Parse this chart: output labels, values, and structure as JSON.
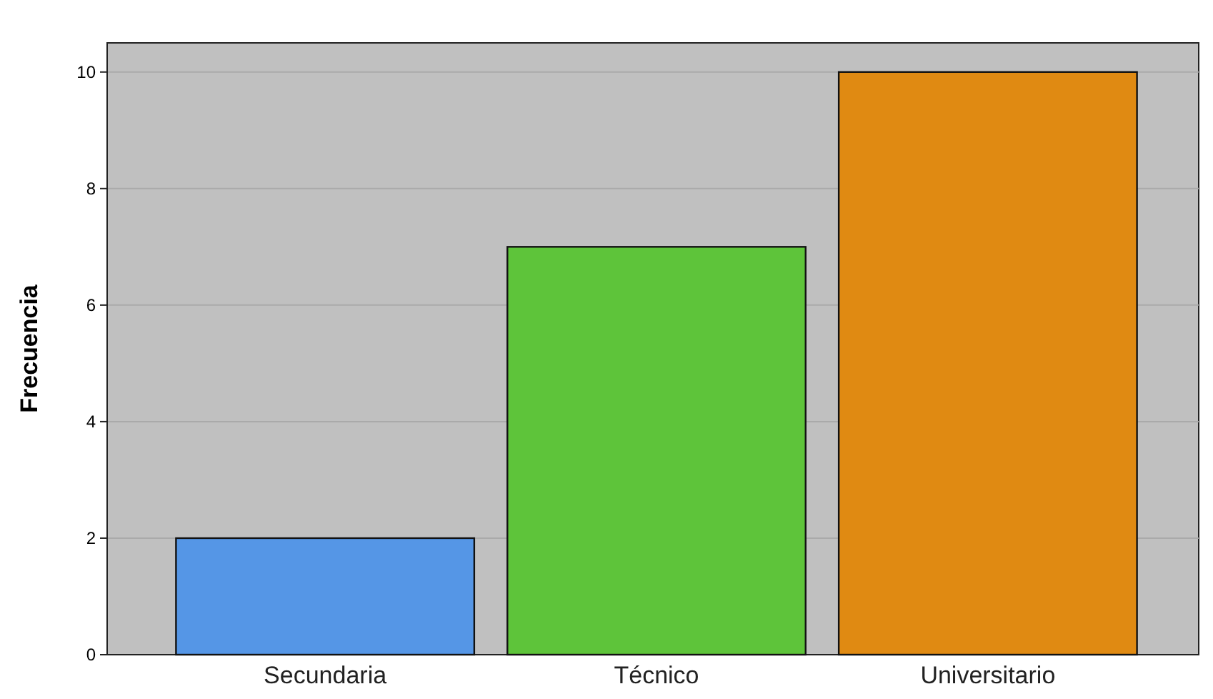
{
  "chart_data": {
    "type": "bar",
    "ylabel": "Frecuencia",
    "categories": [
      "Secundaria",
      "Técnico",
      "Universitario"
    ],
    "values": [
      2,
      7,
      10
    ],
    "colors": [
      "#5596e6",
      "#5ec43a",
      "#e08a12"
    ],
    "ylim": [
      0,
      10.5
    ],
    "yticks": [
      0,
      2,
      4,
      6,
      8,
      10
    ],
    "grid": "y"
  }
}
